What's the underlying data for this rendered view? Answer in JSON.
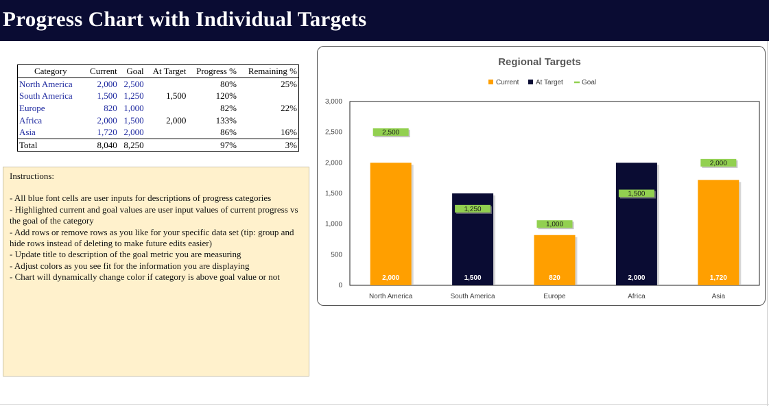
{
  "page": {
    "title": "Progress Chart with Individual Targets"
  },
  "table": {
    "headers": [
      "Category",
      "Current",
      "Goal",
      "At Target",
      "Progress %",
      "Remaining %"
    ],
    "rows": [
      [
        "North America",
        "2,000",
        "2,500",
        "",
        "80%",
        "25%"
      ],
      [
        "South America",
        "1,500",
        "1,250",
        "1,500",
        "120%",
        ""
      ],
      [
        "Europe",
        "820",
        "1,000",
        "",
        "82%",
        "22%"
      ],
      [
        "Africa",
        "2,000",
        "1,500",
        "2,000",
        "133%",
        ""
      ],
      [
        "Asia",
        "1,720",
        "2,000",
        "",
        "86%",
        "16%"
      ]
    ],
    "total": [
      "Total",
      "8,040",
      "8,250",
      "",
      "97%",
      "3%"
    ]
  },
  "instructions": {
    "title": "Instructions:",
    "lines": [
      "- All blue font cells are user inputs for descriptions of progress categories",
      "- Highlighted current and goal values are user input values of current progress vs the goal of the category",
      "- Add rows or remove  rows as you like for your specific data set (tip: group and hide rows instead of deleting to make future edits easier)",
      "- Update title to description of the goal metric you are measuring",
      "- Adjust colors as you see fit for the information you are displaying",
      "- Chart will dynamically change color if category is above goal value or not"
    ]
  },
  "chart_data": {
    "type": "bar",
    "title": "Regional Targets",
    "categories": [
      "North America",
      "South America",
      "Europe",
      "Africa",
      "Asia"
    ],
    "series": [
      {
        "name": "Current",
        "values": [
          2000,
          null,
          820,
          null,
          1720
        ],
        "color": "#ff9f00"
      },
      {
        "name": "At Target",
        "values": [
          null,
          1500,
          null,
          2000,
          null
        ],
        "color": "#0a0c33"
      },
      {
        "name": "Goal",
        "values": [
          2500,
          1250,
          1000,
          1500,
          2000
        ],
        "color": "#92d050"
      }
    ],
    "data_labels": [
      "2,000",
      "1,500",
      "820",
      "2,000",
      "1,720"
    ],
    "goal_labels": [
      "2,500",
      "1,250",
      "1,000",
      "1,500",
      "2,000"
    ],
    "y_ticks": [
      "0",
      "500",
      "1,000",
      "1,500",
      "2,000",
      "2,500",
      "3,000"
    ],
    "ylim": [
      0,
      3000
    ],
    "legend_position": "top",
    "grid": false
  }
}
